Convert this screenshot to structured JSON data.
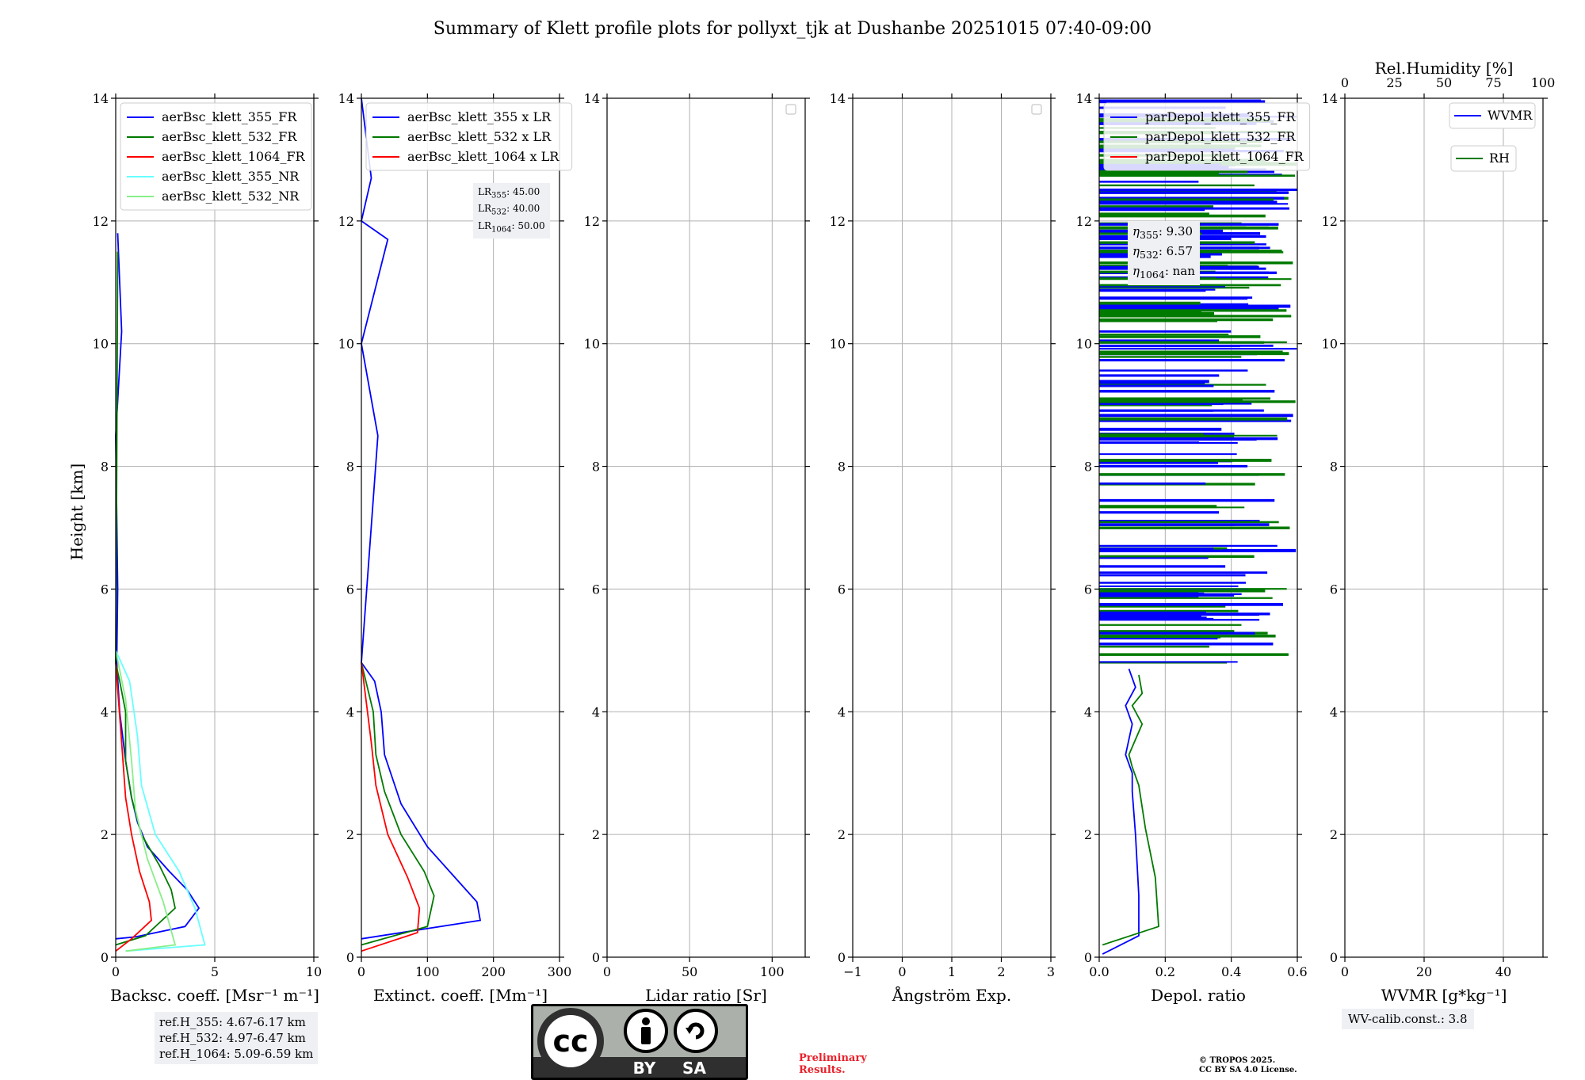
{
  "title": "Summary of Klett profile plots for pollyxt_tjk at Dushanbe 20251015 07:40-09:00",
  "colors": {
    "c355": "#0000ff",
    "c532": "#007a00",
    "c1064": "#ff0000",
    "c355nr": "#66ffff",
    "c532nr": "#88ee88",
    "grid": "#b0b0b0",
    "box": "#eef0f4",
    "prelim": "#e8202a"
  },
  "height_axis": {
    "label": "Height [km]",
    "range": [
      0,
      14
    ],
    "ticks": [
      "0",
      "2",
      "4",
      "6",
      "8",
      "10",
      "12",
      "14"
    ]
  },
  "panels": [
    {
      "key": "backsc",
      "xlabel": "Backsc. coeff. [Msr⁻¹ m⁻¹]",
      "xlim": [
        0,
        10
      ],
      "xticks": [
        "0",
        "5",
        "10"
      ],
      "xtick_values": [
        0,
        5,
        10
      ],
      "legend": [
        "aerBsc_klett_355_FR",
        "aerBsc_klett_532_FR",
        "aerBsc_klett_1064_FR",
        "aerBsc_klett_355_NR",
        "aerBsc_klett_532_NR"
      ]
    },
    {
      "key": "extinct",
      "xlabel": "Extinct. coeff. [Mm⁻¹]",
      "xlim": [
        0,
        300
      ],
      "xticks": [
        "0",
        "100",
        "200",
        "300"
      ],
      "xtick_values": [
        0,
        100,
        200,
        300
      ],
      "legend": [
        "aerBsc_klett_355 x LR",
        "aerBsc_klett_532 x LR",
        "aerBsc_klett_1064 x LR"
      ]
    },
    {
      "key": "lidarratio",
      "xlabel": "Lidar ratio [Sr]",
      "xlim": [
        0,
        120
      ],
      "xticks": [
        "0",
        "50",
        "100"
      ],
      "xtick_values": [
        0,
        50,
        100
      ],
      "legend": []
    },
    {
      "key": "angstrom",
      "xlabel": "Ångström Exp.",
      "xlim": [
        -1,
        3
      ],
      "xticks": [
        "−1",
        "0",
        "1",
        "2",
        "3"
      ],
      "xtick_values": [
        -1,
        0,
        1,
        2,
        3
      ],
      "legend": []
    },
    {
      "key": "depol",
      "xlabel": "Depol. ratio",
      "xlim": [
        0,
        0.6
      ],
      "xticks": [
        "0.0",
        "0.2",
        "0.4",
        "0.6"
      ],
      "xtick_values": [
        0,
        0.2,
        0.4,
        0.6
      ],
      "legend": [
        "parDepol_klett_355_FR",
        "parDepol_klett_532_FR",
        "parDepol_klett_1064_FR"
      ]
    },
    {
      "key": "wvmr",
      "xlabel": "WVMR [g*kg⁻¹]",
      "xlim": [
        0,
        50
      ],
      "xticks": [
        "0",
        "20",
        "40"
      ],
      "xtick_values": [
        0,
        20,
        40
      ],
      "top_xlabel": "Rel.Humidity [%]",
      "top_xticks": [
        "0",
        "25",
        "50",
        "75",
        "100"
      ],
      "top_xtick_values": [
        0,
        25,
        50,
        75,
        100
      ],
      "legend": [
        "WVMR",
        "RH"
      ]
    }
  ],
  "chart_data": {
    "type": "line",
    "title": "Summary of Klett profile plots for pollyxt_tjk at Dushanbe 20251015 07:40-09:00",
    "ylabel": "Height [km]",
    "ylim": [
      0,
      14
    ],
    "series": [
      {
        "panel": "backsc",
        "name": "aerBsc_klett_355_FR",
        "x": [
          0.0,
          1.0,
          3.5,
          4.2,
          3.6,
          2.7,
          1.6,
          1.1,
          0.8,
          0.5,
          0.2,
          0.05,
          0.1,
          0.0,
          0.3,
          0.1
        ],
        "y": [
          0.3,
          0.33,
          0.5,
          0.8,
          1.1,
          1.4,
          1.8,
          2.2,
          2.6,
          3.2,
          4.0,
          4.8,
          6.0,
          8.5,
          10.2,
          11.8
        ]
      },
      {
        "panel": "backsc",
        "name": "aerBsc_klett_532_FR",
        "x": [
          0.0,
          1.5,
          3.0,
          2.8,
          2.2,
          1.3,
          0.8,
          0.5,
          0.5,
          0.2,
          0.0,
          0.05,
          0.1
        ],
        "y": [
          0.2,
          0.35,
          0.8,
          1.1,
          1.5,
          2.0,
          2.6,
          3.2,
          4.0,
          4.5,
          4.8,
          8.0,
          11.5
        ]
      },
      {
        "panel": "backsc",
        "name": "aerBsc_klett_1064_FR",
        "x": [
          0.0,
          0.8,
          1.8,
          1.7,
          1.2,
          0.8,
          0.5,
          0.3,
          0.0
        ],
        "y": [
          0.1,
          0.3,
          0.6,
          0.9,
          1.4,
          2.0,
          2.6,
          3.5,
          4.8
        ]
      },
      {
        "panel": "backsc",
        "name": "aerBsc_klett_355_NR",
        "x": [
          0.5,
          4.5,
          4.0,
          3.2,
          2.0,
          1.3,
          1.1,
          0.7,
          0.0
        ],
        "y": [
          0.1,
          0.2,
          0.8,
          1.4,
          2.0,
          2.8,
          3.6,
          4.5,
          5.0
        ]
      },
      {
        "panel": "backsc",
        "name": "aerBsc_klett_532_NR",
        "x": [
          0.5,
          3.0,
          2.4,
          1.6,
          1.0,
          0.8,
          0.5,
          0.0
        ],
        "y": [
          0.1,
          0.2,
          0.9,
          1.6,
          2.4,
          3.2,
          4.2,
          5.0
        ]
      },
      {
        "panel": "extinct",
        "name": "aerBsc_klett_355 x LR",
        "x": [
          0,
          180,
          175,
          150,
          100,
          60,
          35,
          30,
          20,
          0,
          25,
          0,
          40,
          0,
          15,
          0
        ],
        "y": [
          0.3,
          0.6,
          0.9,
          1.2,
          1.8,
          2.5,
          3.3,
          4.0,
          4.5,
          4.8,
          8.5,
          10.0,
          11.7,
          12.0,
          12.7,
          14.0
        ]
      },
      {
        "panel": "extinct",
        "name": "aerBsc_klett_532 x LR",
        "x": [
          0,
          100,
          110,
          95,
          60,
          35,
          22,
          18,
          0
        ],
        "y": [
          0.2,
          0.5,
          1.0,
          1.4,
          2.0,
          2.7,
          3.3,
          4.0,
          4.8
        ]
      },
      {
        "panel": "extinct",
        "name": "aerBsc_klett_1064 x LR",
        "x": [
          0,
          85,
          88,
          70,
          40,
          22,
          15,
          0
        ],
        "y": [
          0.1,
          0.4,
          0.8,
          1.3,
          2.0,
          2.8,
          3.5,
          4.8
        ]
      },
      {
        "panel": "depol",
        "name": "parDepol_klett_355_FR",
        "x": [
          0.01,
          0.12,
          0.12,
          0.11,
          0.1,
          0.1,
          0.08,
          0.1,
          0.08,
          0.11,
          0.09
        ],
        "y": [
          0.05,
          0.35,
          1.0,
          2.0,
          2.7,
          3.0,
          3.3,
          3.8,
          4.1,
          4.4,
          4.7
        ]
      },
      {
        "panel": "depol",
        "name": "parDepol_klett_532_FR",
        "x": [
          0.01,
          0.18,
          0.17,
          0.14,
          0.12,
          0.1,
          0.09,
          0.13,
          0.1,
          0.13,
          0.12
        ],
        "y": [
          0.2,
          0.5,
          1.3,
          2.1,
          2.8,
          3.1,
          3.3,
          3.8,
          4.1,
          4.3,
          4.6
        ]
      },
      {
        "panel": "depol",
        "name": "parDepol_klett_1064_FR",
        "x": [],
        "y": []
      },
      {
        "panel": "wvmr",
        "name": "WVMR",
        "x": [],
        "y": []
      },
      {
        "panel": "wvmr",
        "name": "RH",
        "x": [],
        "y": []
      }
    ]
  },
  "lr_box": [
    "LR355: 45.00",
    "LR532: 40.00",
    "LR1064: 50.00"
  ],
  "eta_box": [
    "η355: 9.30",
    "η532: 6.57",
    "η1064: nan"
  ],
  "ref_box": [
    "ref.H_355: 4.67-6.17 km",
    "ref.H_532: 4.97-6.47 km",
    "ref.H_1064: 5.09-6.59 km"
  ],
  "wv_calib": "WV-calib.const.: 3.8",
  "cc_logo": {
    "text_cc": "cc",
    "by": "BY",
    "sa": "SA"
  },
  "prelim": [
    "Preliminary",
    "Results."
  ],
  "copyright": [
    "© TROPOS 2025.",
    "CC BY SA 4.0 License."
  ]
}
